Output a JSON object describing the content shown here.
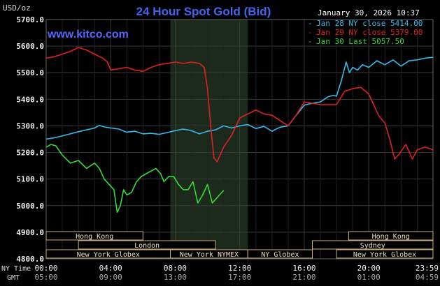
{
  "header": {
    "title": "24 Hour Spot Gold (Bid)",
    "datetime": "January 30, 2026 10:37",
    "watermark": "www.kitco.com",
    "yunit": "USD/oz"
  },
  "legend": [
    {
      "label": "Jan 28 NY close 5414.00",
      "color": "#33bbee"
    },
    {
      "label": "Jan 29 NY close 5379.00",
      "color": "#e02020"
    },
    {
      "label": "Jan 30 Last 5057.50",
      "color": "#33dd33"
    }
  ],
  "time_labels": {
    "ny": "NY Time",
    "gmt": "GMT",
    "ny_ticks": [
      "00:00",
      "04:00",
      "08:00",
      "12:00",
      "16:00",
      "20:00",
      "23:59"
    ],
    "gmt_ticks": [
      "05:00",
      "09:00",
      "13:00",
      "17:00",
      "21:00",
      "01:00",
      "04:59"
    ]
  },
  "markets": [
    {
      "label": "Hong Kong",
      "start": 0.0,
      "end": 6.0,
      "row": 0
    },
    {
      "label": "Hong Kong",
      "start": 18.75,
      "end": 23.98,
      "row": 0
    },
    {
      "label": "London",
      "start": 2.0,
      "end": 10.5,
      "row": 1
    },
    {
      "label": "Sydney",
      "start": 16.5,
      "end": 23.98,
      "row": 1
    },
    {
      "label": "New York Globex",
      "start": 0.0,
      "end": 7.7,
      "row": 2
    },
    {
      "label": "New York NYMEX",
      "start": 7.7,
      "end": 12.5,
      "row": 2
    },
    {
      "label": "NY Globex",
      "start": 12.5,
      "end": 16.5,
      "row": 2
    },
    {
      "label": "New York Globex",
      "start": 18.0,
      "end": 23.98,
      "row": 2
    }
  ],
  "chart_data": {
    "type": "line",
    "title": "24 Hour Spot Gold (Bid)",
    "ylabel": "USD/oz",
    "xlabel": "",
    "xlim": [
      0,
      23.98
    ],
    "ylim": [
      4800,
      5700
    ],
    "yticks": [
      4800,
      4900,
      5000,
      5100,
      5200,
      5300,
      5400,
      5500,
      5600,
      5700
    ],
    "ytick_labels": [
      "4800.0",
      "4900.0",
      "5000.0",
      "5100.0",
      "5200.0",
      "5300.0",
      "5400.0",
      "5500.0",
      "5600.0",
      "5700.0"
    ],
    "xticks": [
      0,
      4,
      8,
      12,
      16,
      20,
      23.98
    ],
    "grid": true,
    "legend_position": "top-right",
    "highlight_band": [
      7.7,
      12.5
    ],
    "series": [
      {
        "name": "Jan 28 NY close 5414.00",
        "color": "#33bbee",
        "x": [
          0,
          0.5,
          1,
          1.5,
          2,
          2.5,
          3,
          3.3,
          3.6,
          4,
          4.5,
          5,
          5.5,
          6,
          6.5,
          7,
          7.5,
          8,
          8.5,
          9,
          9.5,
          10,
          10.5,
          11,
          11.5,
          12,
          12.5,
          13,
          13.5,
          14,
          14.5,
          15,
          15.5,
          16,
          16.5,
          17,
          17.5,
          17.8,
          18,
          18.3,
          18.6,
          18.8,
          19,
          19.3,
          19.6,
          20,
          20.5,
          21,
          21.5,
          22,
          22.5,
          23,
          23.5,
          23.98
        ],
        "y": [
          5250,
          5255,
          5262,
          5270,
          5278,
          5285,
          5292,
          5302,
          5296,
          5292,
          5288,
          5276,
          5280,
          5270,
          5272,
          5268,
          5275,
          5282,
          5288,
          5282,
          5270,
          5280,
          5285,
          5300,
          5292,
          5300,
          5305,
          5290,
          5298,
          5280,
          5295,
          5300,
          5340,
          5378,
          5385,
          5390,
          5410,
          5415,
          5412,
          5470,
          5540,
          5500,
          5520,
          5510,
          5530,
          5520,
          5545,
          5530,
          5548,
          5525,
          5545,
          5548,
          5555,
          5558
        ]
      },
      {
        "name": "Jan 29 NY close 5379.00",
        "color": "#e02020",
        "x": [
          0,
          0.5,
          1,
          1.5,
          2,
          2.5,
          3,
          3.5,
          3.8,
          4,
          4.5,
          5,
          5.5,
          6,
          6.5,
          7,
          7.5,
          8,
          8.5,
          9,
          9.5,
          9.8,
          10,
          10.2,
          10.4,
          10.6,
          11,
          11.5,
          12,
          12.5,
          13,
          13.5,
          14,
          14.5,
          15,
          15.5,
          16,
          16.5,
          17,
          17.5,
          18,
          18.5,
          19,
          19.5,
          20,
          20.3,
          20.6,
          21,
          21.3,
          21.6,
          21.9,
          22.3,
          22.7,
          23,
          23.5,
          23.98
        ],
        "y": [
          5555,
          5560,
          5570,
          5580,
          5595,
          5585,
          5570,
          5555,
          5540,
          5510,
          5515,
          5520,
          5510,
          5505,
          5520,
          5530,
          5535,
          5540,
          5535,
          5540,
          5535,
          5520,
          5440,
          5300,
          5180,
          5165,
          5220,
          5265,
          5330,
          5345,
          5360,
          5345,
          5340,
          5320,
          5300,
          5340,
          5390,
          5385,
          5380,
          5380,
          5380,
          5430,
          5440,
          5445,
          5420,
          5380,
          5340,
          5310,
          5250,
          5175,
          5195,
          5230,
          5175,
          5210,
          5220,
          5210
        ]
      },
      {
        "name": "Jan 30 Last 5057.50",
        "color": "#33dd33",
        "x": [
          0,
          0.3,
          0.6,
          1,
          1.5,
          2,
          2.5,
          3,
          3.3,
          3.6,
          3.9,
          4.2,
          4.4,
          4.6,
          4.8,
          5,
          5.3,
          5.6,
          5.9,
          6.2,
          6.5,
          6.8,
          7.1,
          7.3,
          7.6,
          7.9,
          8.2,
          8.5,
          8.8,
          9.1,
          9.4,
          9.7,
          10,
          10.3,
          10.6,
          11
        ],
        "y": [
          5220,
          5230,
          5225,
          5190,
          5160,
          5170,
          5140,
          5160,
          5140,
          5100,
          5080,
          5060,
          4975,
          5000,
          5060,
          5040,
          5050,
          5090,
          5110,
          5120,
          5130,
          5140,
          5120,
          5090,
          5110,
          5110,
          5080,
          5060,
          5060,
          5090,
          5010,
          5040,
          5080,
          5010,
          5030,
          5057.5
        ]
      }
    ]
  }
}
